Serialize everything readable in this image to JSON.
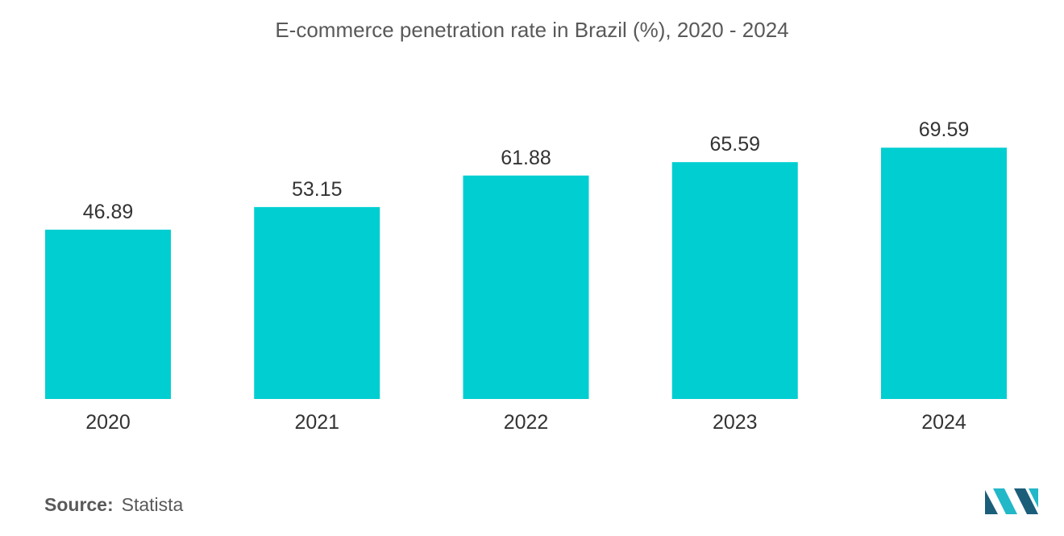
{
  "chart_data": {
    "type": "bar",
    "title": "E-commerce penetration rate in Brazil (%), 2020 - 2024",
    "categories": [
      "2020",
      "2021",
      "2022",
      "2023",
      "2024"
    ],
    "values": [
      46.89,
      53.15,
      61.88,
      65.59,
      69.59
    ],
    "value_labels": [
      "46.89",
      "53.15",
      "61.88",
      "65.59",
      "69.59"
    ],
    "xlabel": "",
    "ylabel": "",
    "ylim": [
      0,
      100
    ],
    "grid": false,
    "legend": "none",
    "bar_color": "#00CED1"
  },
  "source": {
    "label": "Source:",
    "value": "Statista"
  },
  "colors": {
    "logo_dark": "#1B5E7A",
    "logo_light": "#22B8C8"
  }
}
